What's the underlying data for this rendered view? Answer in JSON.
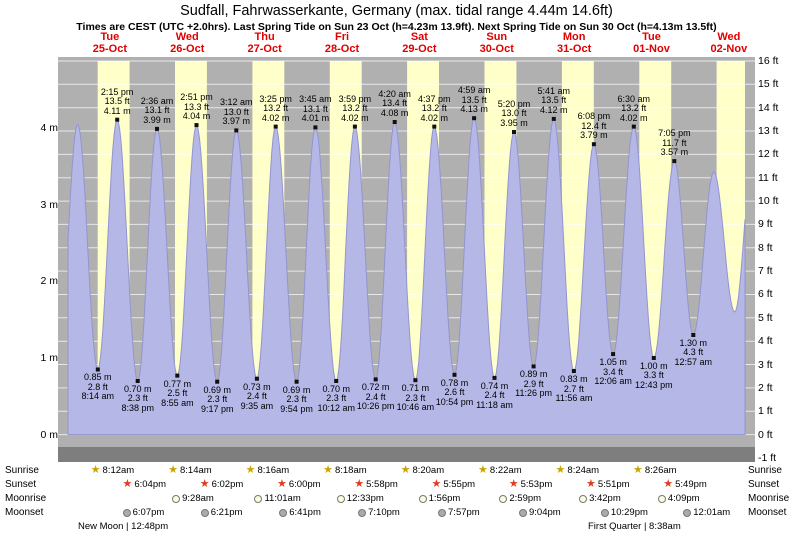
{
  "title": "Sudfall, Fahrwasserkante, Germany (max. tidal range 4.44m 14.6ft)",
  "subtitle": "Times are CEST (UTC +2.0hrs). Last Spring Tide on Sun 23 Oct (h=4.23m 13.9ft). Next Spring Tide on Sun 30 Oct (h=4.13m 13.5ft)",
  "colors": {
    "day_label": "#e00000",
    "plot_bg": "#b0b0b0",
    "day_stripe": "#ffffc9",
    "grid_line": "#ffffff",
    "tide_fill": "#b5b7e6",
    "tide_edge": "#9295cf",
    "seabed_band": "#7e7e7e",
    "dot": "#101010",
    "sunrise_star": "#c8a400",
    "sunset_star": "#e23c1e",
    "moonrise_disc": "#fffce1",
    "moonset_disc": "#ababab"
  },
  "days": [
    {
      "name": "Tue",
      "date": "25-Oct"
    },
    {
      "name": "Wed",
      "date": "26-Oct"
    },
    {
      "name": "Thu",
      "date": "27-Oct"
    },
    {
      "name": "Fri",
      "date": "28-Oct"
    },
    {
      "name": "Sat",
      "date": "29-Oct"
    },
    {
      "name": "Sun",
      "date": "30-Oct"
    },
    {
      "name": "Mon",
      "date": "31-Oct"
    },
    {
      "name": "Tue",
      "date": "01-Nov"
    },
    {
      "name": "Wed",
      "date": "02-Nov"
    }
  ],
  "axes": {
    "left_ticks": [
      {
        "label": "4 m",
        "m": 4
      },
      {
        "label": "3 m",
        "m": 3
      },
      {
        "label": "2 m",
        "m": 2
      },
      {
        "label": "1 m",
        "m": 1
      },
      {
        "label": "0 m",
        "m": 0
      }
    ],
    "right_ticks": [
      {
        "label": "16 ft",
        "ft": 16
      },
      {
        "label": "15 ft",
        "ft": 15
      },
      {
        "label": "14 ft",
        "ft": 14
      },
      {
        "label": "13 ft",
        "ft": 13
      },
      {
        "label": "12 ft",
        "ft": 12
      },
      {
        "label": "11 ft",
        "ft": 11
      },
      {
        "label": "10 ft",
        "ft": 10
      },
      {
        "label": "9 ft",
        "ft": 9
      },
      {
        "label": "8 ft",
        "ft": 8
      },
      {
        "label": "7 ft",
        "ft": 7
      },
      {
        "label": "6 ft",
        "ft": 6
      },
      {
        "label": "5 ft",
        "ft": 5
      },
      {
        "label": "4 ft",
        "ft": 4
      },
      {
        "label": "3 ft",
        "ft": 3
      },
      {
        "label": "2 ft",
        "ft": 2
      },
      {
        "label": "1 ft",
        "ft": 1
      },
      {
        "label": "0 ft",
        "ft": 0
      },
      {
        "label": "-1 ft",
        "ft": -1
      }
    ]
  },
  "chart_data": {
    "type": "area",
    "title": "Tide height curve Tue 25-Oct to Wed 02-Nov",
    "x_unit": "hours from Tue 25-Oct 00:00 CEST",
    "x_range": [
      -1,
      209
    ],
    "y_unit_left": "m",
    "y_unit_right": "ft",
    "y_range_m": [
      -0.35,
      4.9
    ],
    "tides": [
      {
        "type": "low",
        "time": "8:14 am",
        "t": 8.233,
        "m": 0.85,
        "ft": 2.8
      },
      {
        "type": "high",
        "time": "2:15 pm",
        "t": 14.25,
        "m": 4.11,
        "ft": 13.5
      },
      {
        "type": "low",
        "time": "8:38 pm",
        "t": 20.633,
        "m": 0.7,
        "ft": 2.3
      },
      {
        "type": "high",
        "time": "2:36 am",
        "t": 26.6,
        "m": 3.99,
        "ft": 13.1
      },
      {
        "type": "low",
        "time": "8:55 am",
        "t": 32.917,
        "m": 0.77,
        "ft": 2.5
      },
      {
        "type": "high",
        "time": "2:51 pm",
        "t": 38.85,
        "m": 4.04,
        "ft": 13.3
      },
      {
        "type": "low",
        "time": "9:17 pm",
        "t": 45.283,
        "m": 0.69,
        "ft": 2.3
      },
      {
        "type": "high",
        "time": "3:12 am",
        "t": 51.2,
        "m": 3.97,
        "ft": 13.0
      },
      {
        "type": "low",
        "time": "9:35 am",
        "t": 57.583,
        "m": 0.73,
        "ft": 2.4
      },
      {
        "type": "high",
        "time": "3:25 pm",
        "t": 63.417,
        "m": 4.02,
        "ft": 13.2
      },
      {
        "type": "low",
        "time": "9:54 pm",
        "t": 69.9,
        "m": 0.69,
        "ft": 2.3
      },
      {
        "type": "high",
        "time": "3:45 am",
        "t": 75.75,
        "m": 4.01,
        "ft": 13.1
      },
      {
        "type": "low",
        "time": "10:12 am",
        "t": 82.2,
        "m": 0.7,
        "ft": 2.3
      },
      {
        "type": "high",
        "time": "3:59 pm",
        "t": 87.983,
        "m": 4.02,
        "ft": 13.2
      },
      {
        "type": "low",
        "time": "10:26 pm",
        "t": 94.433,
        "m": 0.72,
        "ft": 2.4
      },
      {
        "type": "high",
        "time": "4:20 am",
        "t": 100.333,
        "m": 4.08,
        "ft": 13.4
      },
      {
        "type": "low",
        "time": "10:46 am",
        "t": 106.767,
        "m": 0.71,
        "ft": 2.3
      },
      {
        "type": "high",
        "time": "4:37 pm",
        "t": 112.617,
        "m": 4.02,
        "ft": 13.2
      },
      {
        "type": "low",
        "time": "10:54 pm",
        "t": 118.9,
        "m": 0.78,
        "ft": 2.6
      },
      {
        "type": "high",
        "time": "4:59 am",
        "t": 124.983,
        "m": 4.13,
        "ft": 13.5
      },
      {
        "type": "low",
        "time": "11:18 am",
        "t": 131.3,
        "m": 0.74,
        "ft": 2.4
      },
      {
        "type": "high",
        "time": "5:20 pm",
        "t": 137.333,
        "m": 3.95,
        "ft": 13.0
      },
      {
        "type": "low",
        "time": "11:26 pm",
        "t": 143.433,
        "m": 0.89,
        "ft": 2.9
      },
      {
        "type": "high",
        "time": "5:41 am",
        "t": 149.683,
        "m": 4.12,
        "ft": 13.5
      },
      {
        "type": "low",
        "time": "11:56 am",
        "t": 155.933,
        "m": 0.83,
        "ft": 2.7
      },
      {
        "type": "high",
        "time": "6:08 pm",
        "t": 162.133,
        "m": 3.79,
        "ft": 12.4
      },
      {
        "type": "low",
        "time": "12:06 am",
        "t": 168.1,
        "m": 1.05,
        "ft": 3.4
      },
      {
        "type": "high",
        "time": "6:30 am",
        "t": 174.5,
        "m": 4.02,
        "ft": 13.2
      },
      {
        "type": "low",
        "time": "12:43 pm",
        "t": 180.717,
        "m": 1.0,
        "ft": 3.3
      },
      {
        "type": "high",
        "time": "7:05 pm",
        "t": 187.083,
        "m": 3.57,
        "ft": 11.7
      },
      {
        "type": "low",
        "time": "12:57 am",
        "t": 192.95,
        "m": 1.3,
        "ft": 4.3
      }
    ],
    "edge_tides": [
      {
        "t": -4.3,
        "m": 0.8
      },
      {
        "t": 2.0,
        "m": 4.05
      },
      {
        "t": 199.3,
        "m": 3.43
      },
      {
        "t": 205.8,
        "m": 1.6
      },
      {
        "t": 212.0,
        "m": 3.9
      }
    ]
  },
  "sun_moon": {
    "side_labels": [
      "Sunrise",
      "Sunset",
      "Moonrise",
      "Moonset"
    ],
    "sunrise": [
      {
        "time": "8:12am",
        "t": 8.2
      },
      {
        "time": "8:14am",
        "t": 32.233
      },
      {
        "time": "8:16am",
        "t": 56.267
      },
      {
        "time": "8:18am",
        "t": 80.3
      },
      {
        "time": "8:20am",
        "t": 104.333
      },
      {
        "time": "8:22am",
        "t": 128.367
      },
      {
        "time": "8:24am",
        "t": 152.4
      },
      {
        "time": "8:26am",
        "t": 176.433
      }
    ],
    "sunset": [
      {
        "time": "6:04pm",
        "t": 18.067
      },
      {
        "time": "6:02pm",
        "t": 42.033
      },
      {
        "time": "6:00pm",
        "t": 66.0
      },
      {
        "time": "5:58pm",
        "t": 89.967
      },
      {
        "time": "5:55pm",
        "t": 113.917
      },
      {
        "time": "5:53pm",
        "t": 137.883
      },
      {
        "time": "5:51pm",
        "t": 161.85
      },
      {
        "time": "5:49pm",
        "t": 185.817
      }
    ],
    "moonrise": [
      {
        "time": "9:28am",
        "t": 33.467
      },
      {
        "time": "11:01am",
        "t": 59.017
      },
      {
        "time": "12:33pm",
        "t": 84.55
      },
      {
        "time": "1:56pm",
        "t": 109.933
      },
      {
        "time": "2:59pm",
        "t": 134.983
      },
      {
        "time": "3:42pm",
        "t": 159.7
      },
      {
        "time": "4:09pm",
        "t": 184.15
      }
    ],
    "moonset": [
      {
        "time": "6:07pm",
        "t": 18.117
      },
      {
        "time": "6:21pm",
        "t": 42.35
      },
      {
        "time": "6:41pm",
        "t": 66.683
      },
      {
        "time": "7:10pm",
        "t": 91.167
      },
      {
        "time": "7:57pm",
        "t": 115.95
      },
      {
        "time": "9:04pm",
        "t": 141.067
      },
      {
        "time": "10:29pm",
        "t": 166.483
      },
      {
        "time": "12:01am",
        "t": 192.017
      }
    ]
  },
  "footer": {
    "left": "New Moon | 12:48pm",
    "right": "First Quarter | 8:38am"
  }
}
